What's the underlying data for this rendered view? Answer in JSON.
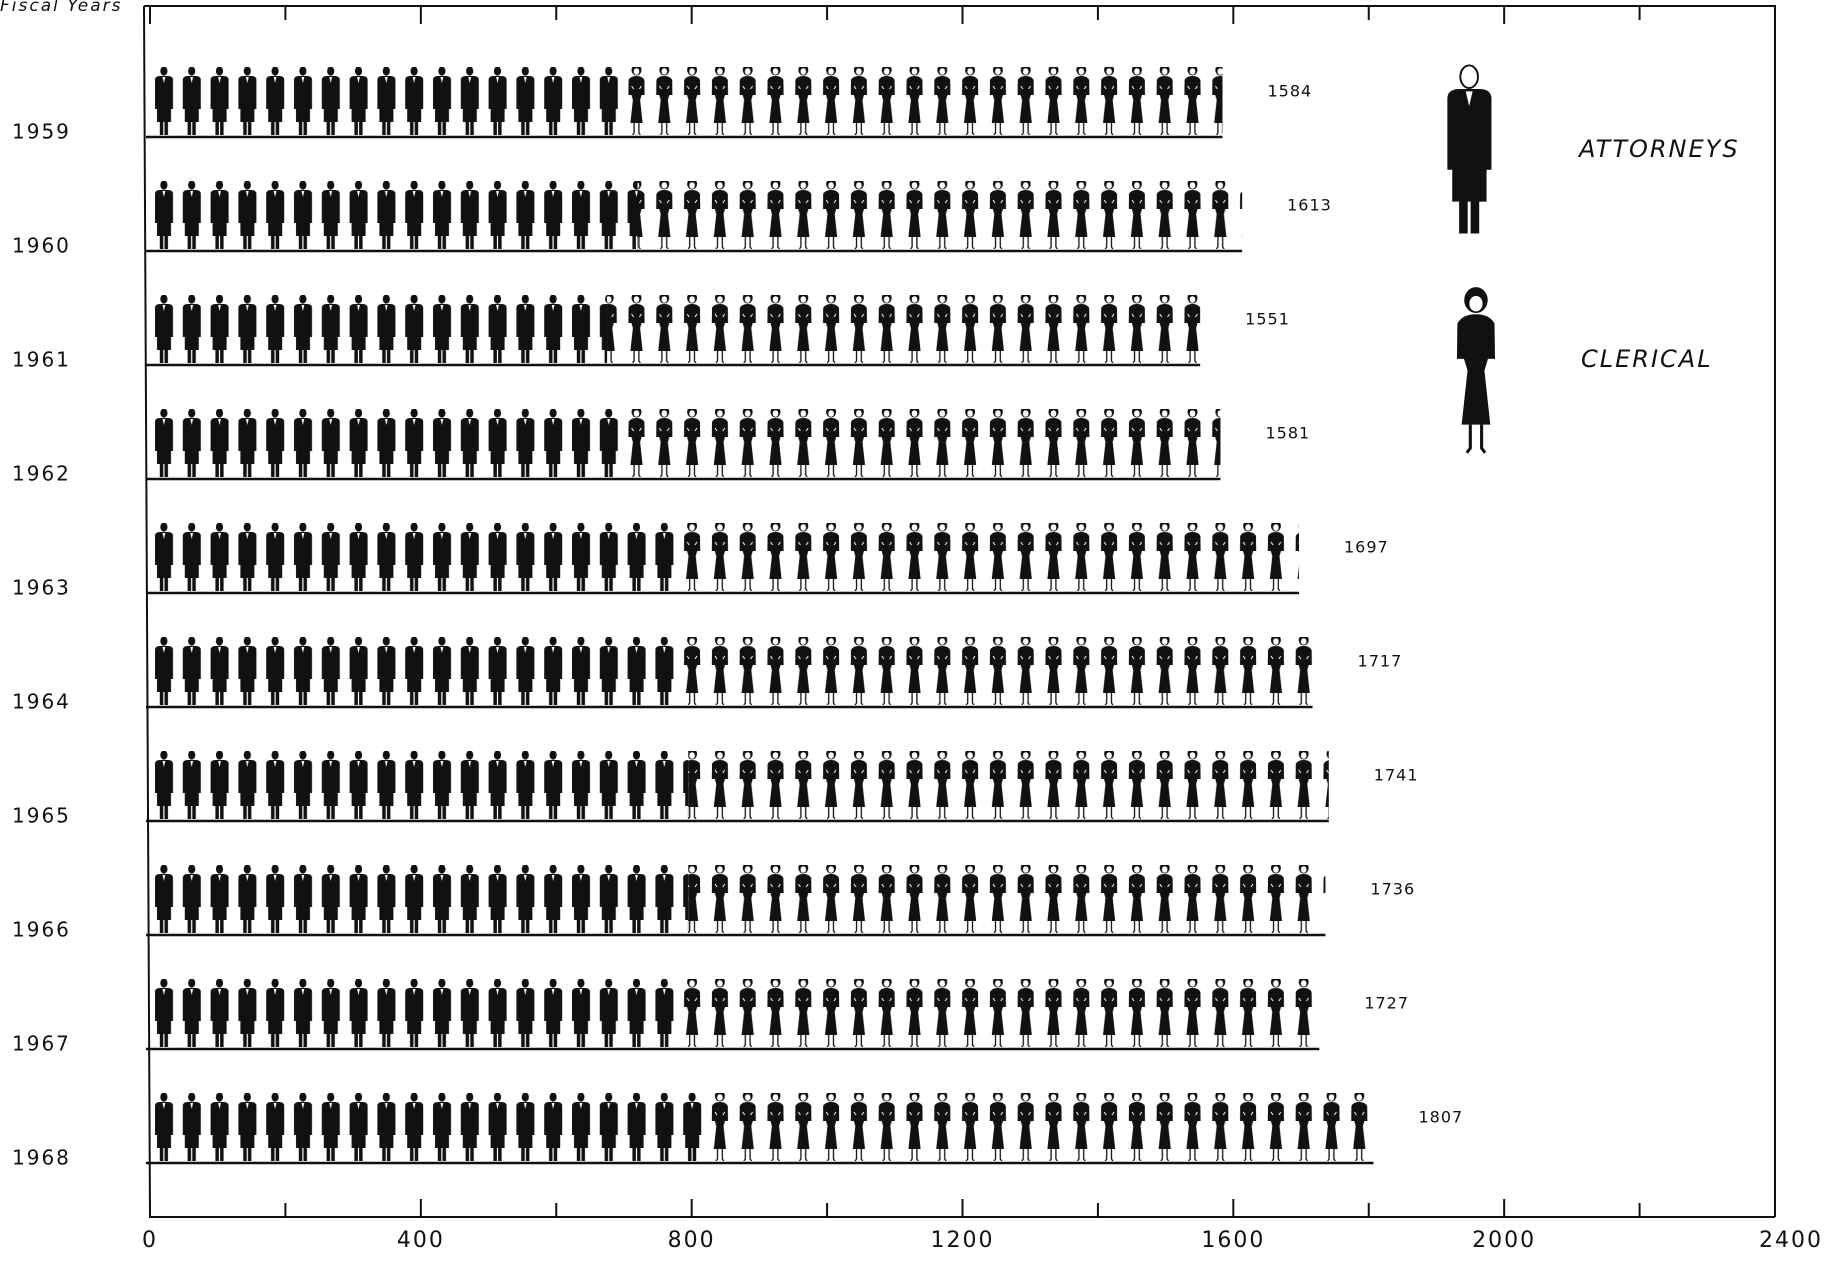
{
  "chart_data": {
    "type": "pictograph-stacked-bar",
    "y_label": "Fiscal Years",
    "categories": [
      "1959",
      "1960",
      "1961",
      "1962",
      "1963",
      "1964",
      "1965",
      "1966",
      "1967",
      "1968"
    ],
    "series": [
      {
        "name": "ATTORNEYS",
        "color": "#111111",
        "values": [
          700,
          720,
          675,
          693,
          780,
          780,
          795,
          795,
          775,
          825
        ]
      },
      {
        "name": "CLERICAL",
        "color": "#111111",
        "values": [
          884,
          893,
          876,
          888,
          917,
          937,
          946,
          941,
          952,
          982
        ]
      }
    ],
    "totals": [
      1584,
      1613,
      1551,
      1581,
      1697,
      1717,
      1741,
      1736,
      1727,
      1807
    ],
    "xlim": [
      0,
      2400
    ],
    "xticks": [
      0,
      400,
      800,
      1200,
      1600,
      2000,
      2400
    ],
    "minor_xticks": [
      200,
      600,
      1000,
      1400,
      1800,
      2200
    ]
  }
}
